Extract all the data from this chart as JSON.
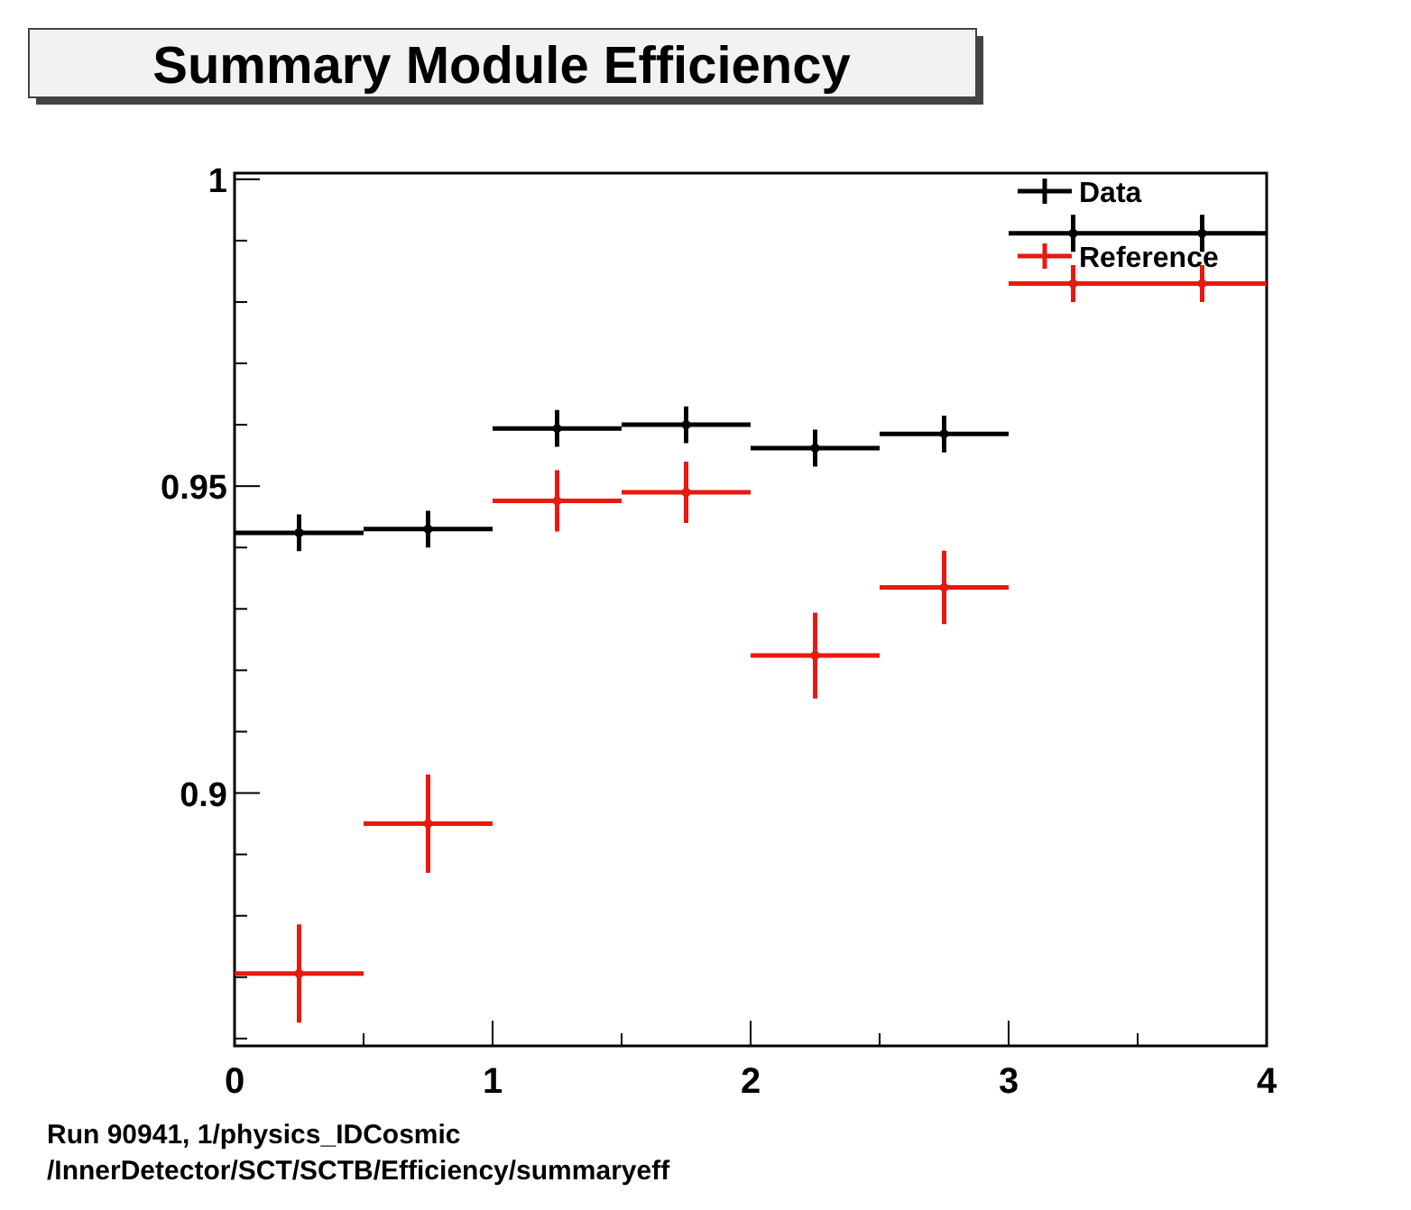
{
  "chart_data": {
    "type": "scatter",
    "title": "Summary Module Efficiency",
    "xlim": [
      0,
      4
    ],
    "xticks": [
      0,
      {
        "value": 0.5,
        "label": null
      },
      1,
      {
        "value": 1.5,
        "label": null
      },
      2,
      {
        "value": 2.5,
        "label": null
      },
      3,
      {
        "value": 3.5,
        "label": null
      },
      4
    ],
    "ylim": [
      0.8588,
      1.001
    ],
    "yticks": [
      {
        "value": 0.86,
        "label": null
      },
      {
        "value": 0.87,
        "label": null
      },
      {
        "value": 0.88,
        "label": null
      },
      {
        "value": 0.89,
        "label": null
      },
      0.9,
      {
        "value": 0.91,
        "label": null
      },
      {
        "value": 0.92,
        "label": null
      },
      {
        "value": 0.93,
        "label": null
      },
      {
        "value": 0.94,
        "label": null
      },
      0.95,
      {
        "value": 0.96,
        "label": null
      },
      {
        "value": 0.97,
        "label": null
      },
      {
        "value": 0.98,
        "label": null
      },
      {
        "value": 0.99,
        "label": null
      },
      1
    ],
    "marker": "circle",
    "legend": "top right",
    "grid": false,
    "x": [
      0.25,
      0.75,
      1.25,
      1.75,
      2.25,
      2.75,
      3.25,
      3.75
    ],
    "series": [
      {
        "name": "Data",
        "color": "#000000",
        "values": [
          0.9424,
          0.943,
          0.9594,
          0.96,
          0.9562,
          0.9585,
          0.9912,
          0.9912
        ],
        "errors": [
          0.003,
          0.003,
          0.003,
          0.003,
          0.003,
          0.003,
          0.003,
          0.003
        ],
        "xerrors": [
          0.25,
          0.25,
          0.25,
          0.25,
          0.25,
          0.25,
          0.25,
          0.25
        ]
      },
      {
        "name": "Reference",
        "color": "#e8190f",
        "values": [
          0.8706,
          0.895,
          0.9476,
          0.949,
          0.9224,
          0.9335,
          0.983,
          0.983
        ],
        "errors": [
          0.008,
          0.008,
          0.005,
          0.005,
          0.007,
          0.006,
          0.003,
          0.003
        ],
        "xerrors": [
          0.25,
          0.25,
          0.25,
          0.25,
          0.25,
          0.25,
          0.25,
          0.25
        ]
      }
    ],
    "annotations": [
      "Run 90941, 1/physics_IDCosmic",
      "/InnerDetector/SCT/SCTB/Efficiency/summaryeff"
    ]
  }
}
